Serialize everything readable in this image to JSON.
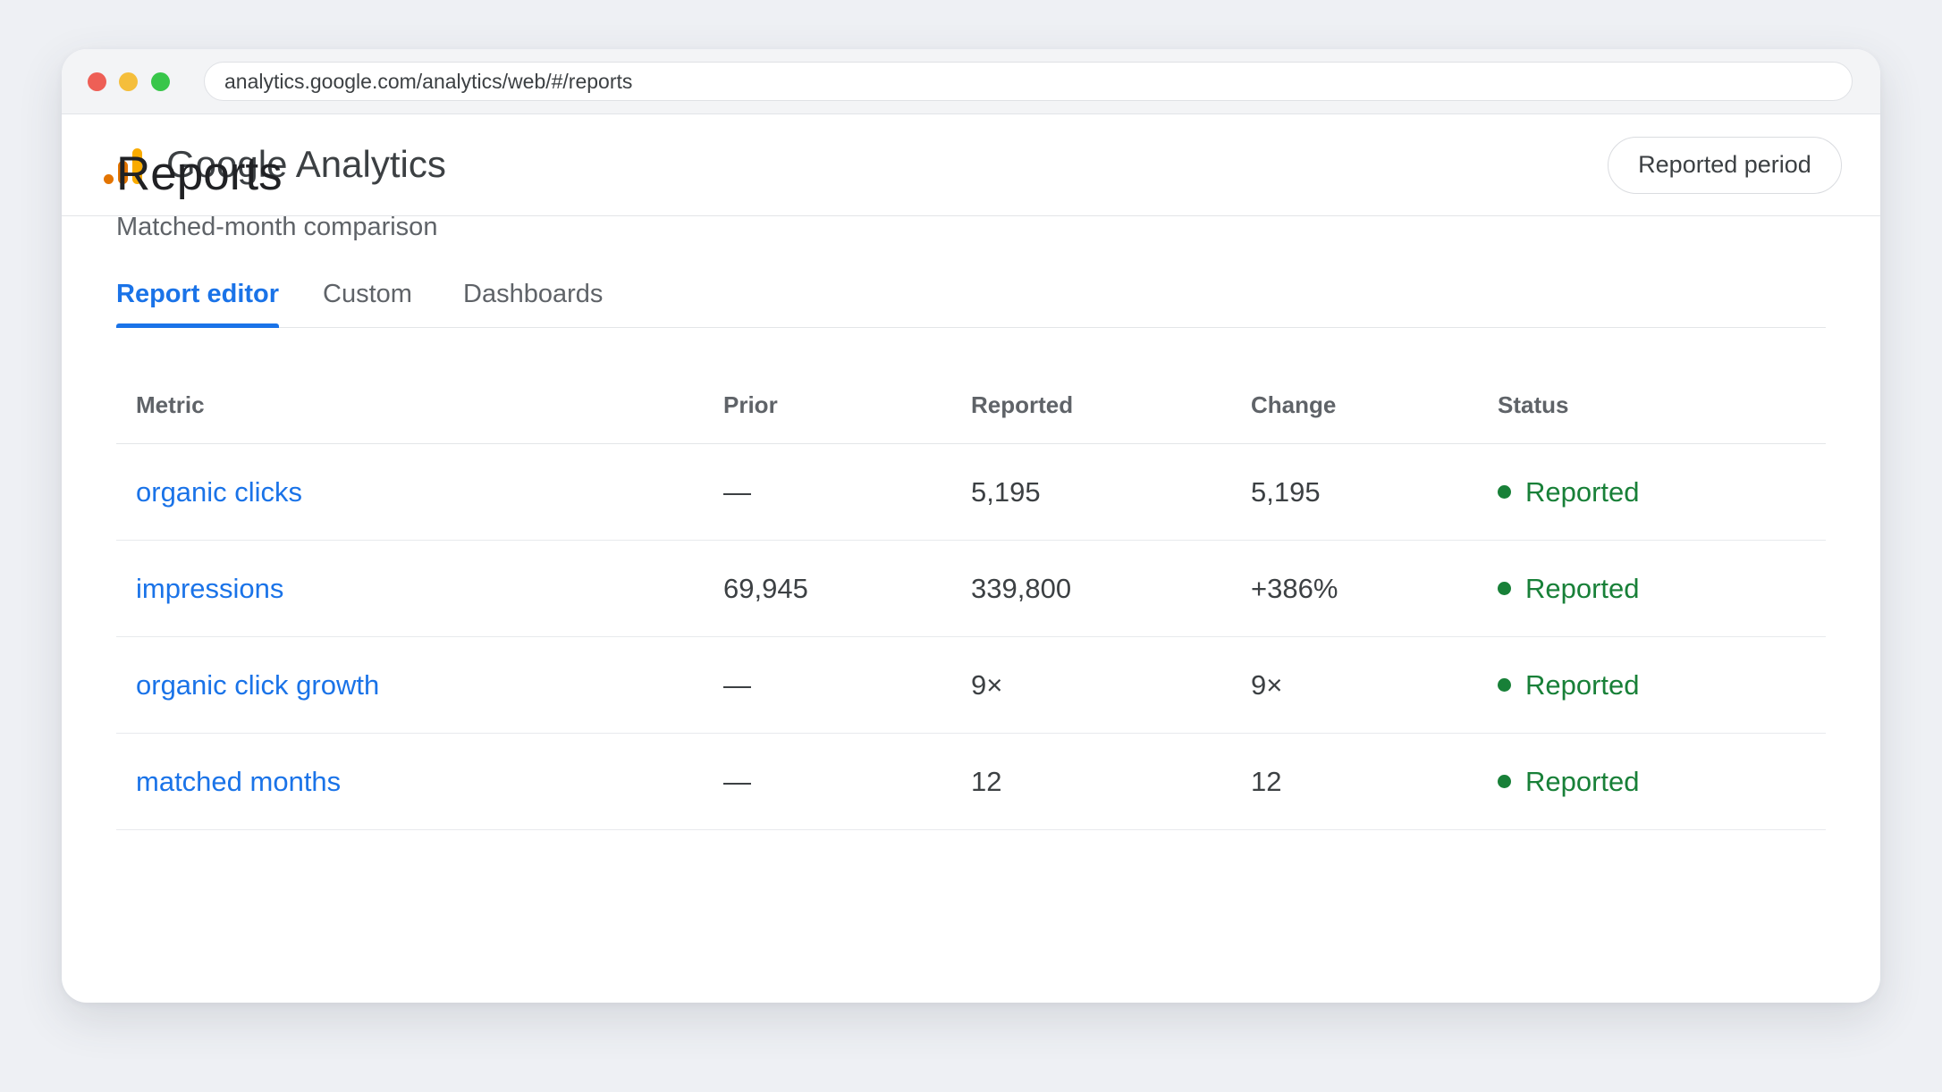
{
  "browser": {
    "url": "analytics.google.com/analytics/web/#/reports"
  },
  "app": {
    "title": "Google Analytics",
    "period_button": "Reported period",
    "brand_colors": {
      "logo_dark": "#e37400",
      "logo_light": "#f9ab00",
      "accent": "#1a73e8",
      "status_green": "#188038"
    }
  },
  "page": {
    "title": "Reports",
    "subtitle": "Matched-month comparison"
  },
  "tabs": [
    {
      "label": "Report editor",
      "active": true
    },
    {
      "label": "Custom",
      "active": false
    },
    {
      "label": "Dashboards",
      "active": false
    }
  ],
  "table": {
    "headers": {
      "metric": "Metric",
      "prior": "Prior",
      "reported": "Reported",
      "change": "Change",
      "status": "Status"
    },
    "rows": [
      {
        "metric": "organic clicks",
        "prior": "—",
        "reported": "5,195",
        "change": "5,195",
        "status": "Reported"
      },
      {
        "metric": "impressions",
        "prior": "69,945",
        "reported": "339,800",
        "change": "+386%",
        "status": "Reported"
      },
      {
        "metric": "organic click growth",
        "prior": "—",
        "reported": "9×",
        "change": "9×",
        "status": "Reported"
      },
      {
        "metric": "matched months",
        "prior": "—",
        "reported": "12",
        "change": "12",
        "status": "Reported"
      }
    ]
  }
}
